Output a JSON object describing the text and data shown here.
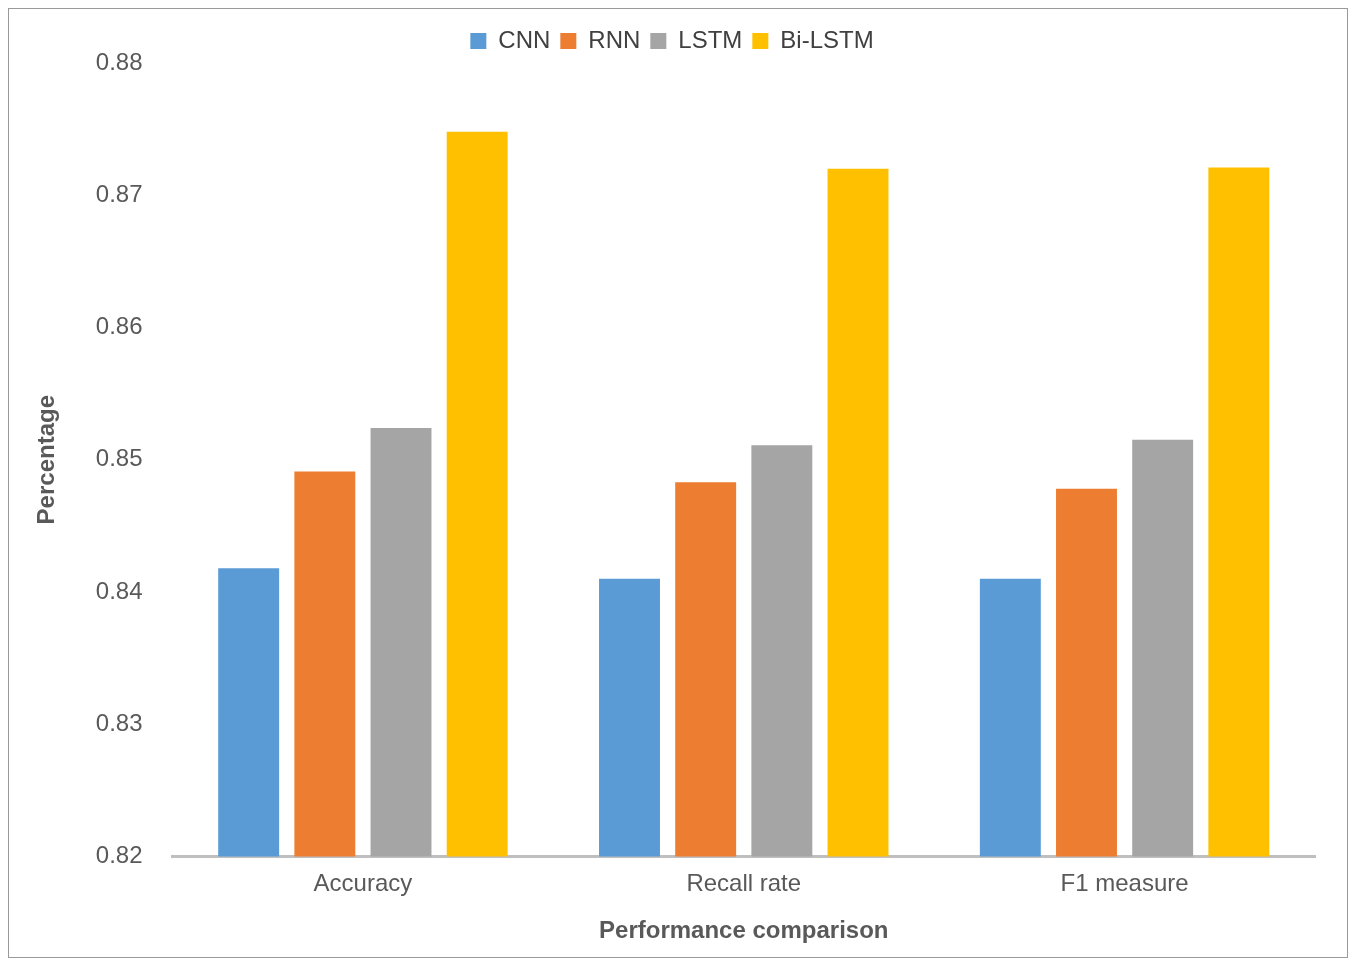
{
  "chart_data": {
    "type": "bar",
    "xlabel": "Performance comparison",
    "ylabel": "Percentage",
    "categories": [
      "Accuracy",
      "Recall rate",
      "F1 measure"
    ],
    "series": [
      {
        "name": "CNN",
        "color": "#5b9bd5",
        "values": [
          0.8418,
          0.841,
          0.841
        ]
      },
      {
        "name": "RNN",
        "color": "#ed7d31",
        "values": [
          0.8491,
          0.8483,
          0.8478
        ]
      },
      {
        "name": "LSTM",
        "color": "#a5a5a5",
        "values": [
          0.8524,
          0.8511,
          0.8515
        ]
      },
      {
        "name": "Bi-LSTM",
        "color": "#ffc000",
        "values": [
          0.8748,
          0.872,
          0.8721
        ]
      }
    ],
    "ylim": [
      0.82,
      0.88
    ],
    "yticks": [
      0.82,
      0.83,
      0.84,
      0.85,
      0.86,
      0.87,
      0.88
    ],
    "grid": false,
    "legend": "top"
  }
}
